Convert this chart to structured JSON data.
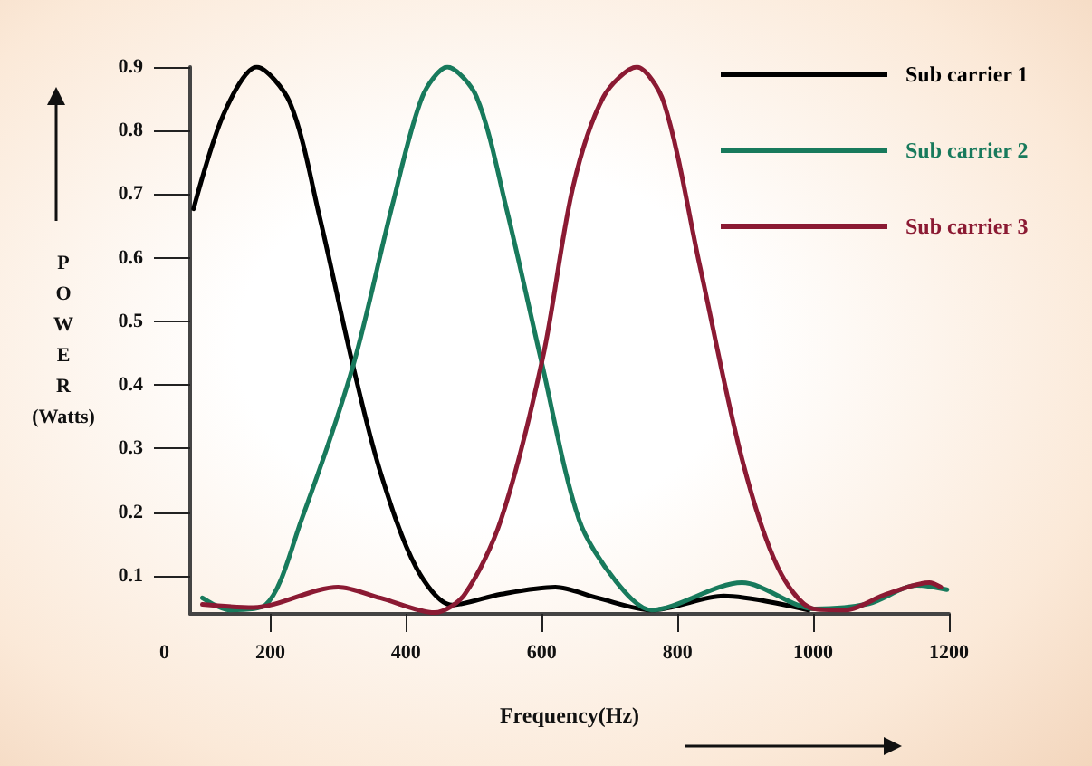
{
  "chart_data": {
    "type": "line",
    "xlabel": "Frequency(Hz)",
    "ylabel": "POWER (Watts)",
    "xlim": [
      82,
      1200
    ],
    "ylim": [
      0.04,
      0.9
    ],
    "xticks": [
      200,
      400,
      600,
      800,
      1000,
      1200
    ],
    "yticks": [
      0.1,
      0.2,
      0.3,
      0.4,
      0.5,
      0.6,
      0.7,
      0.8,
      0.9
    ],
    "annotations": [
      "0"
    ],
    "grid": false,
    "legend": "top right",
    "marker": "none",
    "line_style": "solid",
    "series": [
      {
        "name": "Sub carrier 1",
        "color": "#000000",
        "x": [
          87,
          131,
          180,
          229,
          273,
          322,
          362,
          415,
          468,
          540,
          620,
          682,
          762,
          868,
          993
        ],
        "values": [
          0.677,
          0.825,
          0.9,
          0.844,
          0.663,
          0.43,
          0.264,
          0.113,
          0.054,
          0.071,
          0.082,
          0.065,
          0.046,
          0.068,
          0.046
        ]
      },
      {
        "name": "Sub carrier 2",
        "color": "#187a5c",
        "x": [
          100,
          140,
          193,
          246,
          322,
          380,
          424,
          461,
          504,
          549,
          600,
          655,
          708,
          762,
          895,
          1002,
          1082,
          1153,
          1197
        ],
        "values": [
          0.065,
          0.046,
          0.054,
          0.188,
          0.43,
          0.683,
          0.853,
          0.9,
          0.853,
          0.673,
          0.435,
          0.188,
          0.093,
          0.046,
          0.089,
          0.048,
          0.056,
          0.085,
          0.078
        ]
      },
      {
        "name": "Sub carrier 3",
        "color": "#8b1a33",
        "x": [
          100,
          175,
          300,
          362,
          442,
          486,
          540,
          602,
          646,
          691,
          740,
          780,
          833,
          895,
          948,
          1000,
          1046,
          1108,
          1171,
          1188
        ],
        "values": [
          0.055,
          0.05,
          0.082,
          0.065,
          0.042,
          0.07,
          0.188,
          0.445,
          0.711,
          0.853,
          0.9,
          0.844,
          0.587,
          0.284,
          0.113,
          0.048,
          0.046,
          0.071,
          0.089,
          0.082
        ]
      }
    ]
  }
}
